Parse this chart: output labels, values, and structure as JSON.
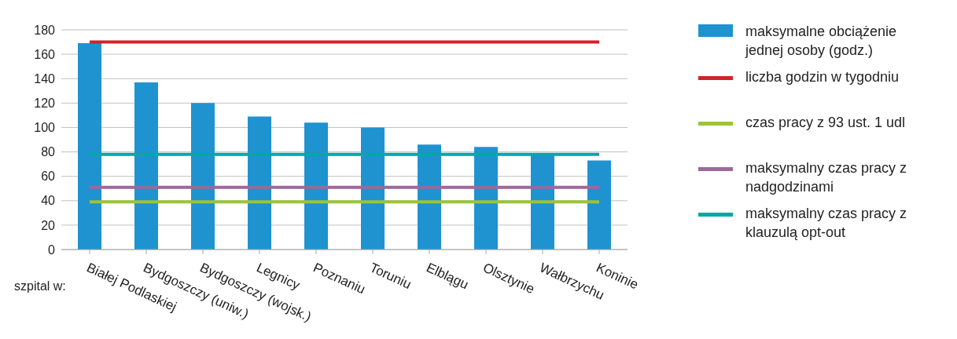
{
  "chart_data": {
    "type": "bar",
    "xlabel": "szpital w:",
    "categories": [
      "Białej Podlaskiej",
      "Bydgoszczy (uniw.)",
      "Bydgoszczy (wojsk.)",
      "Legnicy",
      "Poznaniu",
      "Toruniu",
      "Elblągu",
      "Olsztynie",
      "Wałbrzychu",
      "Koninie"
    ],
    "series": [
      {
        "name": "maksymalne obciążenie jednej osoby (godz.)",
        "color": "#1f93d0",
        "values": [
          169,
          137,
          120,
          109,
          104,
          100,
          86,
          84,
          79,
          73
        ]
      },
      {
        "name": "liczba godzin w tygodniu",
        "type": "line",
        "color": "#d2232a",
        "values": [
          170,
          170,
          170,
          170,
          170,
          170,
          170,
          170,
          170,
          170
        ]
      },
      {
        "name": "czas pracy z 93 ust. 1 udl",
        "type": "line",
        "color": "#9dc33b",
        "values": [
          39,
          39,
          39,
          39,
          39,
          39,
          39,
          39,
          39,
          39
        ]
      },
      {
        "name": "maksymalny czas pracy z nadgodzinami",
        "type": "line",
        "color": "#9b6a9b",
        "values": [
          51,
          51,
          51,
          51,
          51,
          51,
          51,
          51,
          51,
          51
        ]
      },
      {
        "name": "maksymalny czas pracy z klauzulą opt-out",
        "type": "line",
        "color": "#00a8a8",
        "values": [
          78,
          78,
          78,
          78,
          78,
          78,
          78,
          78,
          78,
          78
        ]
      }
    ],
    "ylim": [
      0,
      180
    ],
    "yticks": [
      0,
      20,
      40,
      60,
      80,
      100,
      120,
      140,
      160,
      180
    ],
    "grid": "y",
    "legend": "right",
    "marker": "none",
    "line_style": "solid"
  }
}
